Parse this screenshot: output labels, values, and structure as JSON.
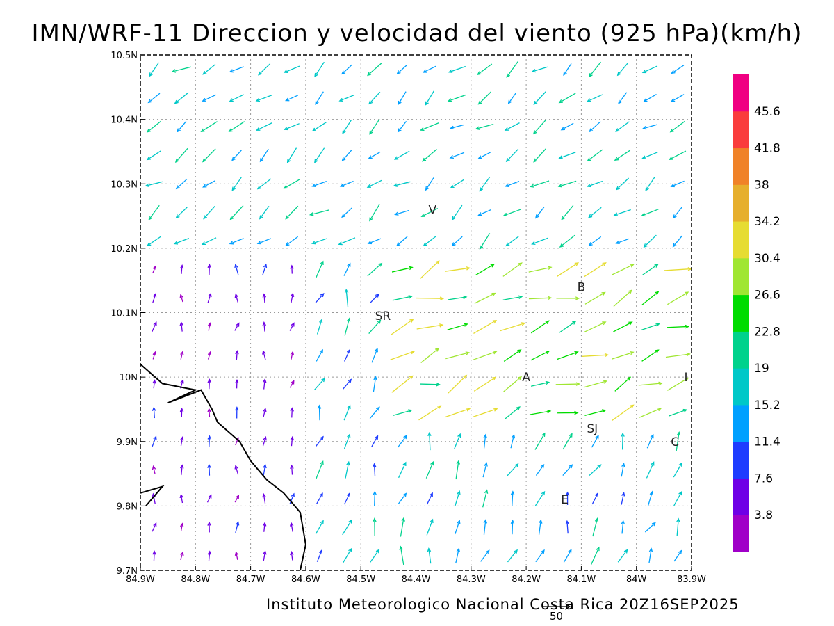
{
  "map": {
    "title": "IMN/WRF-11 Direccion y velocidad del viento (925 hPa)(km/h)",
    "credit": "Instituto Meteorologico Nacional Costa Rica 20Z16SEP2025",
    "reference_vector_value": "50",
    "longitude_labels": [
      "84.9W",
      "84.8W",
      "84.7W",
      "84.6W",
      "84.5W",
      "84.4W",
      "84.3W",
      "84.2W",
      "84.1W",
      "84W",
      "83.9W"
    ],
    "latitude_labels": [
      "10.5N",
      "10.4N",
      "10.3N",
      "10.2N",
      "10.1N",
      "10N",
      "9.9N",
      "9.8N",
      "9.7N"
    ],
    "lon_range": [
      -84.9,
      -83.9
    ],
    "lat_range": [
      9.7,
      10.5
    ],
    "colorbar": {
      "labels": [
        "3.8",
        "7.6",
        "11.4",
        "15.2",
        "19",
        "22.8",
        "26.6",
        "30.4",
        "34.2",
        "38",
        "41.8",
        "45.6"
      ],
      "colors": [
        "#a000c8",
        "#6e00e6",
        "#1e3cff",
        "#00a0ff",
        "#00c8c8",
        "#00d28c",
        "#00dc00",
        "#a0e632",
        "#e6dc32",
        "#e6af2d",
        "#f08228",
        "#fa3c3c",
        "#f00082"
      ]
    },
    "city_labels": [
      {
        "name": "V",
        "lon": -84.37,
        "lat": 10.26
      },
      {
        "name": "B",
        "lon": -84.1,
        "lat": 10.14
      },
      {
        "name": "SR",
        "lon": -84.46,
        "lat": 10.095
      },
      {
        "name": "A",
        "lon": -84.2,
        "lat": 10.0
      },
      {
        "name": "I",
        "lon": -83.91,
        "lat": 10.0
      },
      {
        "name": "SJ",
        "lon": -84.08,
        "lat": 9.92
      },
      {
        "name": "C",
        "lon": -83.93,
        "lat": 9.9
      },
      {
        "name": "E",
        "lon": -84.13,
        "lat": 9.81
      }
    ],
    "coastline": [
      [
        -84.9,
        10.02
      ],
      [
        -84.86,
        9.99
      ],
      [
        -84.8,
        9.98
      ],
      [
        -84.85,
        9.96
      ],
      [
        -84.79,
        9.98
      ],
      [
        -84.77,
        9.95
      ],
      [
        -84.76,
        9.93
      ],
      [
        -84.72,
        9.9
      ],
      [
        -84.7,
        9.87
      ],
      [
        -84.67,
        9.84
      ],
      [
        -84.64,
        9.82
      ],
      [
        -84.61,
        9.79
      ],
      [
        -84.6,
        9.74
      ],
      [
        -84.61,
        9.7
      ]
    ],
    "coastline_spur": [
      [
        -84.9,
        9.82
      ],
      [
        -84.86,
        9.83
      ],
      [
        -84.89,
        9.8
      ]
    ]
  }
}
